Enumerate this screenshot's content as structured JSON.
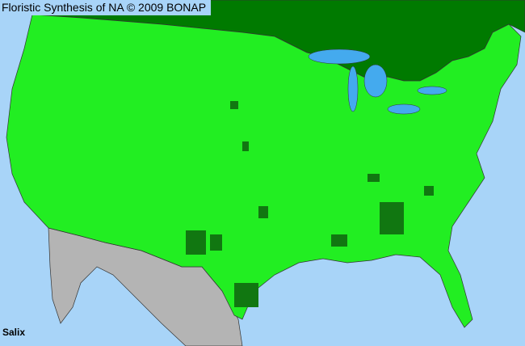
{
  "header": {
    "title": "Floristic Synthesis of NA © 2009 BONAP"
  },
  "map": {
    "taxon_label": "Salix",
    "colors": {
      "water": "#a8d4f8",
      "lakes": "#44aaee",
      "canada": "#007a00",
      "present_county": "#22ee22",
      "dark_county": "#117711",
      "mexico": "#b4b4b4",
      "borders": "#333333"
    }
  }
}
